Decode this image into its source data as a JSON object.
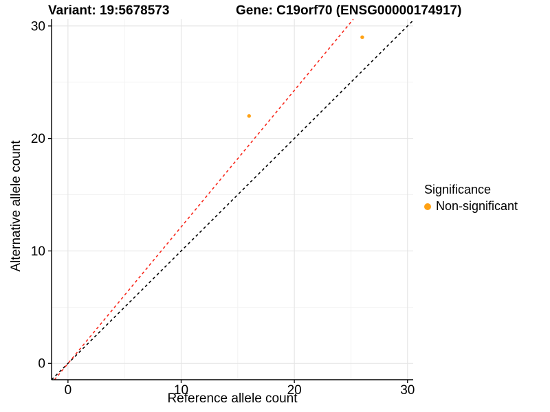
{
  "titles": {
    "variant": "Variant: 19:5678573",
    "gene": "Gene: C19orf70 (ENSG00000174917)"
  },
  "axes": {
    "x_label": "Reference allele count",
    "y_label": "Alternative allele count"
  },
  "legend": {
    "title": "Significance",
    "items": [
      {
        "label": "Non-significant",
        "color": "#FFA113"
      }
    ]
  },
  "colors": {
    "point": "#FFA113",
    "identity_line": "#000000",
    "ratio_line": "#F8271B",
    "grid_major": "#E4E4E4",
    "grid_minor": "#F1F1F1",
    "axis": "#000000",
    "background": "#FFFFFF"
  },
  "chart_data": {
    "type": "scatter",
    "title_left": "Variant: 19:5678573",
    "title_right": "Gene: C19orf70 (ENSG00000174917)",
    "xlabel": "Reference allele count",
    "ylabel": "Alternative allele count",
    "xlim": [
      -1.45,
      30.5
    ],
    "ylim": [
      -1.45,
      30.6
    ],
    "x_ticks": [
      0,
      10,
      20,
      30
    ],
    "y_ticks": [
      0,
      10,
      20,
      30
    ],
    "x_minor_ticks": [
      5,
      15,
      25
    ],
    "y_minor_ticks": [
      5,
      15,
      25
    ],
    "grid": true,
    "legend_position": "right",
    "series": [
      {
        "name": "Non-significant",
        "color": "#FFA113",
        "points": [
          {
            "x": 16,
            "y": 22
          },
          {
            "x": 26,
            "y": 29
          }
        ]
      }
    ],
    "lines": [
      {
        "name": "identity-line",
        "style": "dashed",
        "color": "#000000",
        "slope": 1.0,
        "intercept": 0,
        "x1": -1.45,
        "y1": -1.45,
        "x2": 30.5,
        "y2": 30.5
      },
      {
        "name": "ratio-line",
        "style": "dashed",
        "color": "#F8271B",
        "slope": 1.214,
        "intercept": 0,
        "x1": -1.19,
        "y1": -1.45,
        "x2": 25.21,
        "y2": 30.6
      }
    ]
  }
}
